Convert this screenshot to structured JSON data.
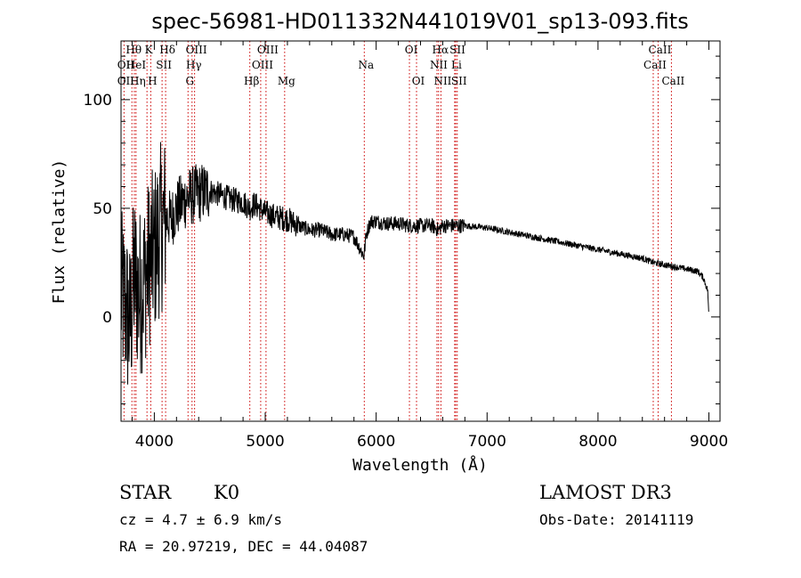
{
  "chart_data": {
    "type": "line",
    "title": "spec-56981-HD011332N441019V01_sp13-093.fits",
    "xlabel": "Wavelength (Å)",
    "ylabel": "Flux (relative)",
    "xlim": [
      3700,
      9100
    ],
    "ylim": [
      -48,
      127
    ],
    "xticks": [
      4000,
      5000,
      6000,
      7000,
      8000,
      9000
    ],
    "xtick_labels": [
      "4000",
      "5000",
      "6000",
      "7000",
      "8000",
      "9000"
    ],
    "yticks": [
      0,
      50,
      100
    ],
    "ytick_labels": [
      "0",
      "50",
      "100"
    ],
    "series": [
      {
        "name": "spectrum",
        "x": [
          3700,
          3740,
          3780,
          3820,
          3860,
          3900,
          3950,
          4000,
          4050,
          4100,
          4150,
          4200,
          4300,
          4400,
          4500,
          4600,
          4700,
          4800,
          4860,
          4900,
          5000,
          5100,
          5200,
          5300,
          5400,
          5500,
          5600,
          5700,
          5800,
          5890,
          5910,
          5950,
          6000,
          6100,
          6200,
          6300,
          6400,
          6500,
          6563,
          6600,
          6700,
          6800,
          7000,
          7200,
          7400,
          7600,
          7800,
          8000,
          8200,
          8400,
          8500,
          8600,
          8700,
          8800,
          8900,
          8950,
          8990,
          9000
        ],
        "y": [
          10,
          5,
          -5,
          20,
          10,
          15,
          25,
          30,
          40,
          45,
          45,
          50,
          55,
          57,
          58,
          56,
          54,
          53,
          50,
          52,
          48,
          46,
          45,
          42,
          40,
          40,
          38,
          38,
          37,
          28,
          38,
          44,
          44,
          43,
          43,
          42,
          42,
          42,
          40,
          42,
          42,
          42,
          41,
          39,
          37,
          35,
          33,
          31,
          29,
          27,
          25,
          24,
          23,
          22,
          21,
          18,
          12,
          0
        ]
      }
    ],
    "spectral_lines": [
      {
        "label": "OII",
        "x": 3727,
        "row": 2
      },
      {
        "label": "OII",
        "x": 3727,
        "row": 3
      },
      {
        "label": "Hθ",
        "x": 3798,
        "row": 1
      },
      {
        "label": "HeI",
        "x": 3820,
        "row": 2
      },
      {
        "label": "Hη",
        "x": 3835,
        "row": 3
      },
      {
        "label": "K",
        "x": 3934,
        "row": 1
      },
      {
        "label": "SII",
        "x": 4070,
        "row": 2
      },
      {
        "label": "H",
        "x": 3968,
        "row": 3
      },
      {
        "label": "Hδ",
        "x": 4102,
        "row": 1
      },
      {
        "label": "OIII",
        "x": 4363,
        "row": 1
      },
      {
        "label": "Hγ",
        "x": 4340,
        "row": 2
      },
      {
        "label": "G",
        "x": 4304,
        "row": 3
      },
      {
        "label": "Hβ",
        "x": 4861,
        "row": 3
      },
      {
        "label": "OIII",
        "x": 5007,
        "row": 1
      },
      {
        "label": "OIII",
        "x": 4959,
        "row": 2
      },
      {
        "label": "Mg",
        "x": 5175,
        "row": 3
      },
      {
        "label": "Na",
        "x": 5893,
        "row": 2
      },
      {
        "label": "OI",
        "x": 6300,
        "row": 1
      },
      {
        "label": "OI",
        "x": 6364,
        "row": 3
      },
      {
        "label": "Hα",
        "x": 6563,
        "row": 1
      },
      {
        "label": "NII",
        "x": 6548,
        "row": 2
      },
      {
        "label": "NII",
        "x": 6584,
        "row": 3
      },
      {
        "label": "SII",
        "x": 6717,
        "row": 1
      },
      {
        "label": "Li",
        "x": 6708,
        "row": 2
      },
      {
        "label": "SII",
        "x": 6731,
        "row": 3
      },
      {
        "label": "CaII",
        "x": 8542,
        "row": 1
      },
      {
        "label": "CaII",
        "x": 8498,
        "row": 2
      },
      {
        "label": "CaII",
        "x": 8662,
        "row": 3
      }
    ]
  },
  "info": {
    "object_type": "STAR",
    "subclass": "K0",
    "survey": "LAMOST DR3",
    "cz": "cz = 4.7 ± 6.9 km/s",
    "obs_date": "Obs-Date: 20141119",
    "coords": "RA =  20.97219, DEC =  44.04087"
  },
  "colors": {
    "spectrum": "#000000",
    "lines": "#cc0000"
  }
}
